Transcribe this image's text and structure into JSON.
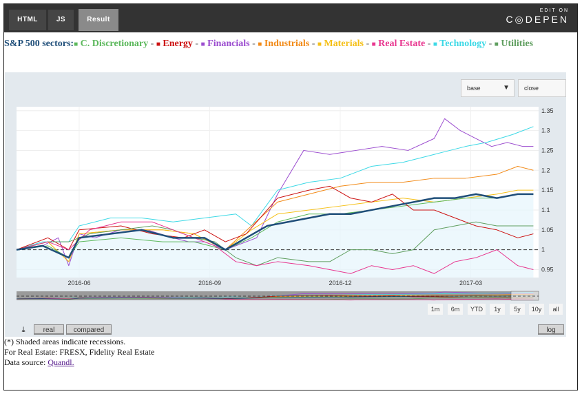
{
  "toolbar": {
    "tabs": [
      "HTML",
      "JS",
      "Result"
    ],
    "edit_on": "EDIT ON",
    "codepen": "C◎DEPEN"
  },
  "title": {
    "prefix": "S&P 500 sectors:",
    "sectors": [
      {
        "label": "C. Discretionary",
        "color": "#5cb85c"
      },
      {
        "label": "Energy",
        "color": "#cc1111"
      },
      {
        "label": "Financials",
        "color": "#9b4ccf"
      },
      {
        "label": "Industrials",
        "color": "#f28a17"
      },
      {
        "label": "Materials",
        "color": "#f5c018"
      },
      {
        "label": "Real Estate",
        "color": "#e8368f"
      },
      {
        "label": "Technology",
        "color": "#3dd9e6"
      },
      {
        "label": "Utilities",
        "color": "#5f9e5f"
      }
    ],
    "separator": "-",
    "prefix_color": "#1f4e79"
  },
  "controls": {
    "base_label": "base",
    "close_label": "close",
    "ranges": [
      "1m",
      "6m",
      "YTD",
      "1y",
      "5y",
      "10y",
      "all"
    ],
    "download_icon": "⤓",
    "modes": [
      "real",
      "compared"
    ],
    "log_label": "log"
  },
  "notes": {
    "line1": "(*) Shaded areas indicate recessions.",
    "line2": "For Real Estate: FRESX, Fidelity Real Estate",
    "line3_prefix": "Data source: ",
    "line3_link": "Quandl."
  },
  "chart_data": {
    "type": "line",
    "x_ticks": [
      "2016-06",
      "2016-09",
      "2016-12",
      "2017-03"
    ],
    "y_ticks": [
      0.95,
      1,
      1.05,
      1.1,
      1.15,
      1.2,
      1.25,
      1.3,
      1.35
    ],
    "ylim": [
      0.93,
      1.36
    ],
    "xlim": [
      0,
      100
    ],
    "baseline": 1,
    "index_color": "#1f4e79",
    "x_tick_positions": [
      12,
      37,
      62,
      87
    ],
    "series": [
      {
        "name": "Financials",
        "color": "#9b4ccf",
        "points": [
          [
            0,
            1.0
          ],
          [
            5,
            1.01
          ],
          [
            8,
            1.03
          ],
          [
            10,
            0.96
          ],
          [
            12,
            1.04
          ],
          [
            15,
            1.03
          ],
          [
            20,
            1.05
          ],
          [
            25,
            1.05
          ],
          [
            30,
            1.03
          ],
          [
            33,
            1.02
          ],
          [
            36,
            1.02
          ],
          [
            40,
            1.0
          ],
          [
            46,
            1.03
          ],
          [
            50,
            1.14
          ],
          [
            55,
            1.25
          ],
          [
            60,
            1.24
          ],
          [
            65,
            1.25
          ],
          [
            70,
            1.26
          ],
          [
            75,
            1.25
          ],
          [
            80,
            1.28
          ],
          [
            82,
            1.33
          ],
          [
            85,
            1.3
          ],
          [
            88,
            1.28
          ],
          [
            91,
            1.26
          ],
          [
            94,
            1.27
          ],
          [
            97,
            1.26
          ],
          [
            99,
            1.26
          ]
        ]
      },
      {
        "name": "Technology",
        "color": "#3dd9e6",
        "points": [
          [
            0,
            1.0
          ],
          [
            5,
            1.02
          ],
          [
            10,
            1.02
          ],
          [
            12,
            1.06
          ],
          [
            18,
            1.08
          ],
          [
            24,
            1.08
          ],
          [
            30,
            1.07
          ],
          [
            36,
            1.08
          ],
          [
            42,
            1.09
          ],
          [
            45,
            1.06
          ],
          [
            50,
            1.15
          ],
          [
            56,
            1.17
          ],
          [
            62,
            1.18
          ],
          [
            68,
            1.21
          ],
          [
            74,
            1.22
          ],
          [
            80,
            1.24
          ],
          [
            86,
            1.26
          ],
          [
            90,
            1.27
          ],
          [
            95,
            1.29
          ],
          [
            99,
            1.31
          ]
        ]
      },
      {
        "name": "Industrials",
        "color": "#f28a17",
        "points": [
          [
            0,
            1.0
          ],
          [
            6,
            1.02
          ],
          [
            10,
            0.97
          ],
          [
            12,
            1.04
          ],
          [
            20,
            1.05
          ],
          [
            28,
            1.05
          ],
          [
            34,
            1.04
          ],
          [
            40,
            1.0
          ],
          [
            45,
            1.06
          ],
          [
            50,
            1.12
          ],
          [
            56,
            1.14
          ],
          [
            62,
            1.16
          ],
          [
            68,
            1.17
          ],
          [
            74,
            1.17
          ],
          [
            80,
            1.18
          ],
          [
            86,
            1.18
          ],
          [
            92,
            1.19
          ],
          [
            96,
            1.21
          ],
          [
            99,
            1.2
          ]
        ]
      },
      {
        "name": "Materials",
        "color": "#f5c018",
        "points": [
          [
            0,
            1.0
          ],
          [
            6,
            1.02
          ],
          [
            10,
            0.97
          ],
          [
            12,
            1.04
          ],
          [
            20,
            1.05
          ],
          [
            28,
            1.05
          ],
          [
            34,
            1.04
          ],
          [
            40,
            1.0
          ],
          [
            45,
            1.05
          ],
          [
            50,
            1.09
          ],
          [
            56,
            1.1
          ],
          [
            62,
            1.11
          ],
          [
            68,
            1.12
          ],
          [
            74,
            1.13
          ],
          [
            80,
            1.12
          ],
          [
            86,
            1.13
          ],
          [
            92,
            1.14
          ],
          [
            96,
            1.15
          ],
          [
            99,
            1.15
          ]
        ]
      },
      {
        "name": "C. Discretionary",
        "color": "#5cb85c",
        "points": [
          [
            0,
            1.0
          ],
          [
            6,
            1.01
          ],
          [
            10,
            0.98
          ],
          [
            12,
            1.02
          ],
          [
            20,
            1.03
          ],
          [
            28,
            1.02
          ],
          [
            34,
            1.02
          ],
          [
            40,
            1.0
          ],
          [
            45,
            1.03
          ],
          [
            50,
            1.07
          ],
          [
            56,
            1.09
          ],
          [
            62,
            1.09
          ],
          [
            68,
            1.1
          ],
          [
            74,
            1.11
          ],
          [
            80,
            1.12
          ],
          [
            86,
            1.13
          ],
          [
            92,
            1.13
          ],
          [
            96,
            1.14
          ],
          [
            99,
            1.14
          ]
        ]
      },
      {
        "name": "Energy",
        "color": "#cc1111",
        "points": [
          [
            0,
            1.0
          ],
          [
            6,
            1.03
          ],
          [
            10,
            1.0
          ],
          [
            12,
            1.05
          ],
          [
            20,
            1.06
          ],
          [
            26,
            1.04
          ],
          [
            32,
            1.03
          ],
          [
            36,
            1.05
          ],
          [
            40,
            1.02
          ],
          [
            44,
            1.04
          ],
          [
            50,
            1.13
          ],
          [
            56,
            1.15
          ],
          [
            60,
            1.16
          ],
          [
            64,
            1.13
          ],
          [
            68,
            1.12
          ],
          [
            72,
            1.14
          ],
          [
            76,
            1.1
          ],
          [
            80,
            1.1
          ],
          [
            84,
            1.08
          ],
          [
            88,
            1.06
          ],
          [
            92,
            1.05
          ],
          [
            96,
            1.03
          ],
          [
            99,
            1.04
          ]
        ]
      },
      {
        "name": "Utilities",
        "color": "#5f9e5f",
        "points": [
          [
            0,
            1.0
          ],
          [
            6,
            1.02
          ],
          [
            10,
            1.02
          ],
          [
            14,
            1.04
          ],
          [
            20,
            1.05
          ],
          [
            26,
            1.06
          ],
          [
            30,
            1.05
          ],
          [
            34,
            1.03
          ],
          [
            38,
            1.02
          ],
          [
            42,
            0.98
          ],
          [
            46,
            0.96
          ],
          [
            50,
            0.98
          ],
          [
            56,
            0.97
          ],
          [
            60,
            0.97
          ],
          [
            64,
            1.0
          ],
          [
            68,
            1.0
          ],
          [
            72,
            0.99
          ],
          [
            76,
            1.0
          ],
          [
            80,
            1.05
          ],
          [
            84,
            1.06
          ],
          [
            88,
            1.07
          ],
          [
            92,
            1.06
          ],
          [
            96,
            1.06
          ],
          [
            99,
            1.06
          ]
        ]
      },
      {
        "name": "Real Estate",
        "color": "#e8368f",
        "points": [
          [
            0,
            1.0
          ],
          [
            6,
            1.02
          ],
          [
            10,
            1.0
          ],
          [
            14,
            1.05
          ],
          [
            20,
            1.07
          ],
          [
            26,
            1.07
          ],
          [
            30,
            1.05
          ],
          [
            34,
            1.03
          ],
          [
            38,
            1.01
          ],
          [
            42,
            0.97
          ],
          [
            46,
            0.96
          ],
          [
            50,
            0.97
          ],
          [
            56,
            0.96
          ],
          [
            60,
            0.95
          ],
          [
            64,
            0.94
          ],
          [
            68,
            0.96
          ],
          [
            72,
            0.95
          ],
          [
            76,
            0.96
          ],
          [
            80,
            0.94
          ],
          [
            84,
            0.97
          ],
          [
            88,
            0.98
          ],
          [
            92,
            1.0
          ],
          [
            96,
            0.96
          ],
          [
            99,
            0.95
          ]
        ]
      },
      {
        "name": "S&P 500",
        "color": "#1f4e79",
        "points": [
          [
            0,
            1.0
          ],
          [
            5,
            1.01
          ],
          [
            10,
            0.98
          ],
          [
            12,
            1.03
          ],
          [
            18,
            1.04
          ],
          [
            24,
            1.05
          ],
          [
            30,
            1.03
          ],
          [
            36,
            1.03
          ],
          [
            40,
            1.0
          ],
          [
            44,
            1.03
          ],
          [
            48,
            1.06
          ],
          [
            52,
            1.07
          ],
          [
            56,
            1.08
          ],
          [
            60,
            1.09
          ],
          [
            64,
            1.09
          ],
          [
            68,
            1.1
          ],
          [
            72,
            1.11
          ],
          [
            76,
            1.12
          ],
          [
            80,
            1.13
          ],
          [
            84,
            1.13
          ],
          [
            88,
            1.14
          ],
          [
            92,
            1.13
          ],
          [
            96,
            1.14
          ],
          [
            99,
            1.14
          ]
        ]
      }
    ]
  }
}
